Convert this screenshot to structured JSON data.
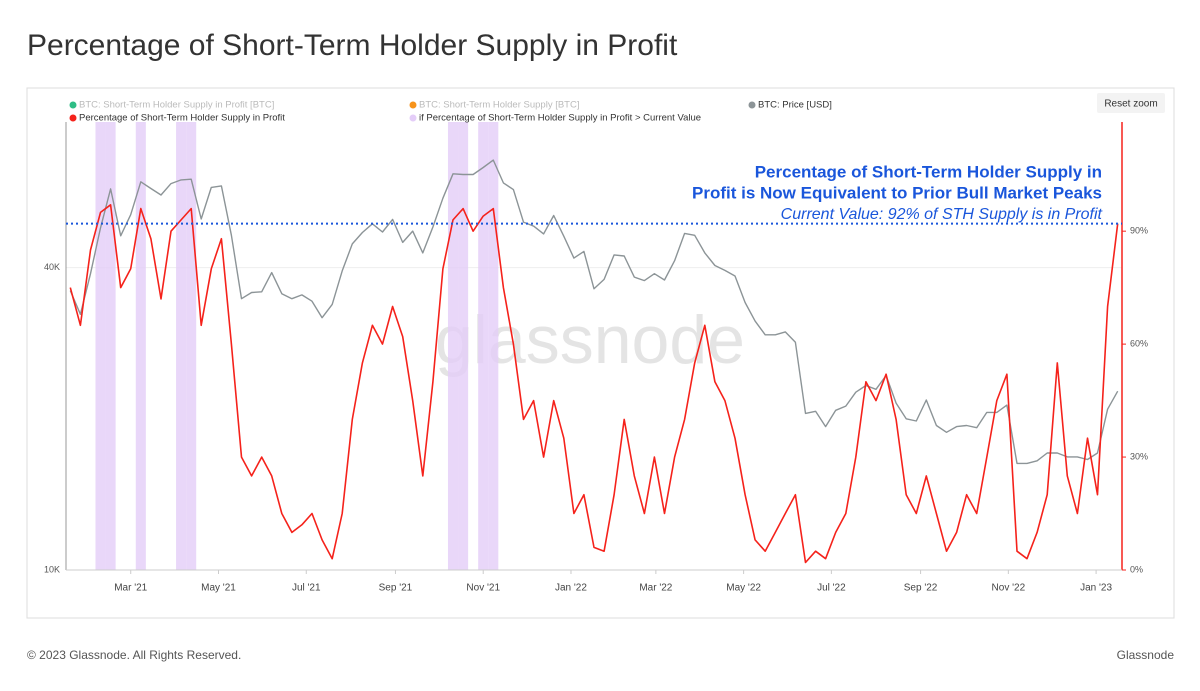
{
  "title": "Percentage of Short-Term Holder Supply in Profit",
  "footer": {
    "copyright": "© 2023 Glassnode. All Rights Reserved.",
    "brand": "Glassnode"
  },
  "controls": {
    "reset_zoom": "Reset zoom"
  },
  "chart_data": {
    "type": "line",
    "watermark": "glassnode",
    "annotation": {
      "lines": [
        "Percentage of Short-Term Holder Supply in",
        "Profit is Now Equivalent to Prior Bull Market Peaks"
      ],
      "note": "Current Value: 92% of STH Supply is in Profit",
      "color": "#1a56db"
    },
    "reference_value": 92,
    "inactive_series": [
      {
        "name": "BTC: Short-Term Holder Supply in Profit [BTC]",
        "color": "#2ebd85"
      },
      {
        "name": "BTC: Short-Term Holder Supply [BTC]",
        "color": "#f7931a"
      }
    ],
    "highlight": {
      "name": "if Percentage of Short-Term Holder Supply in Profit > Current Value",
      "color": "#e4cdf8"
    },
    "x": [
      "2021-01-18",
      "2021-01-25",
      "2021-02-01",
      "2021-02-08",
      "2021-02-15",
      "2021-02-22",
      "2021-03-01",
      "2021-03-08",
      "2021-03-15",
      "2021-03-22",
      "2021-03-29",
      "2021-04-05",
      "2021-04-12",
      "2021-04-19",
      "2021-04-26",
      "2021-05-03",
      "2021-05-10",
      "2021-05-17",
      "2021-05-24",
      "2021-05-31",
      "2021-06-07",
      "2021-06-14",
      "2021-06-21",
      "2021-06-28",
      "2021-07-05",
      "2021-07-12",
      "2021-07-19",
      "2021-07-26",
      "2021-08-02",
      "2021-08-09",
      "2021-08-16",
      "2021-08-23",
      "2021-08-30",
      "2021-09-06",
      "2021-09-13",
      "2021-09-20",
      "2021-09-27",
      "2021-10-04",
      "2021-10-11",
      "2021-10-18",
      "2021-10-25",
      "2021-11-01",
      "2021-11-08",
      "2021-11-15",
      "2021-11-22",
      "2021-11-29",
      "2021-12-06",
      "2021-12-13",
      "2021-12-20",
      "2021-12-27",
      "2022-01-03",
      "2022-01-10",
      "2022-01-17",
      "2022-01-24",
      "2022-01-31",
      "2022-02-07",
      "2022-02-14",
      "2022-02-21",
      "2022-02-28",
      "2022-03-07",
      "2022-03-14",
      "2022-03-21",
      "2022-03-28",
      "2022-04-04",
      "2022-04-11",
      "2022-04-18",
      "2022-04-25",
      "2022-05-02",
      "2022-05-09",
      "2022-05-16",
      "2022-05-23",
      "2022-05-30",
      "2022-06-06",
      "2022-06-13",
      "2022-06-20",
      "2022-06-27",
      "2022-07-04",
      "2022-07-11",
      "2022-07-18",
      "2022-07-25",
      "2022-08-01",
      "2022-08-08",
      "2022-08-15",
      "2022-08-22",
      "2022-08-29",
      "2022-09-05",
      "2022-09-12",
      "2022-09-19",
      "2022-09-26",
      "2022-10-03",
      "2022-10-10",
      "2022-10-17",
      "2022-10-24",
      "2022-10-31",
      "2022-11-07",
      "2022-11-14",
      "2022-11-21",
      "2022-11-28",
      "2022-12-05",
      "2022-12-12",
      "2022-12-19",
      "2022-12-26",
      "2023-01-02",
      "2023-01-09",
      "2023-01-16"
    ],
    "series": [
      {
        "name": "BTC: Price [USD]",
        "color": "#8c9497",
        "axis": "y",
        "values": [
          36000,
          32300,
          38900,
          48000,
          57400,
          46300,
          51000,
          59300,
          57500,
          55800,
          58800,
          59800,
          60000,
          50000,
          57800,
          58200,
          46400,
          34700,
          35700,
          35800,
          39100,
          35500,
          34700,
          35300,
          34300,
          31800,
          33800,
          39400,
          44600,
          47000,
          48900,
          47100,
          49900,
          44900,
          47300,
          42800,
          48200,
          55000,
          61500,
          61300,
          61300,
          63300,
          65500,
          59000,
          57200,
          49300,
          48400,
          46700,
          50800,
          46200,
          41800,
          43100,
          36300,
          37900,
          42400,
          42200,
          38300,
          37700,
          38900,
          37800,
          41300,
          46800,
          46400,
          42800,
          40400,
          39500,
          38500,
          34100,
          31300,
          29400,
          29400,
          29800,
          28400,
          20500,
          20700,
          19300,
          20800,
          21200,
          22600,
          23300,
          22900,
          24400,
          21500,
          20000,
          19800,
          21800,
          19400,
          18800,
          19300,
          19400,
          19200,
          20600,
          20600,
          21300,
          16300,
          16300,
          16500,
          17100,
          17100,
          16800,
          16800,
          16600,
          17100,
          20900,
          22700
        ]
      },
      {
        "name": "Percentage of Short-Term Holder Supply in Profit",
        "color": "#f5221b",
        "axis": "y2",
        "values": [
          75,
          65,
          85,
          95,
          97,
          75,
          80,
          96,
          88,
          72,
          90,
          93,
          96,
          65,
          80,
          88,
          60,
          30,
          25,
          30,
          25,
          15,
          10,
          12,
          15,
          8,
          3,
          15,
          40,
          55,
          65,
          60,
          70,
          62,
          45,
          25,
          50,
          80,
          93,
          96,
          90,
          94,
          96,
          75,
          60,
          40,
          45,
          30,
          45,
          35,
          15,
          20,
          6,
          5,
          20,
          40,
          25,
          15,
          30,
          15,
          30,
          40,
          55,
          65,
          50,
          45,
          35,
          20,
          8,
          5,
          10,
          15,
          20,
          2,
          5,
          3,
          10,
          15,
          30,
          50,
          45,
          52,
          40,
          20,
          15,
          25,
          15,
          5,
          10,
          20,
          15,
          30,
          45,
          52,
          5,
          3,
          10,
          20,
          55,
          25,
          15,
          35,
          20,
          70,
          92
        ]
      }
    ],
    "xlim": [
      "2021-01-15",
      "2023-01-19"
    ],
    "xticks": [
      {
        "value": "2021-03-01",
        "label": "Mar '21"
      },
      {
        "value": "2021-05-01",
        "label": "May '21"
      },
      {
        "value": "2021-07-01",
        "label": "Jul '21"
      },
      {
        "value": "2021-09-01",
        "label": "Sep '21"
      },
      {
        "value": "2021-11-01",
        "label": "Nov '21"
      },
      {
        "value": "2022-01-01",
        "label": "Jan '22"
      },
      {
        "value": "2022-03-01",
        "label": "Mar '22"
      },
      {
        "value": "2022-05-01",
        "label": "May '22"
      },
      {
        "value": "2022-07-01",
        "label": "Jul '22"
      },
      {
        "value": "2022-09-01",
        "label": "Sep '22"
      },
      {
        "value": "2022-11-01",
        "label": "Nov '22"
      },
      {
        "value": "2023-01-01",
        "label": "Jan '23"
      }
    ],
    "ylim": [
      10000,
      78000
    ],
    "log": true,
    "yticks": [
      {
        "value": 10000,
        "label": "10K"
      },
      {
        "value": 40000,
        "label": "40K"
      }
    ],
    "y2lim": [
      0,
      119
    ],
    "y2ticks": [
      {
        "value": 0,
        "label": "0%"
      },
      {
        "value": 30,
        "label": "30%"
      },
      {
        "value": 60,
        "label": "60%"
      },
      {
        "value": 90,
        "label": "90%"
      }
    ]
  }
}
